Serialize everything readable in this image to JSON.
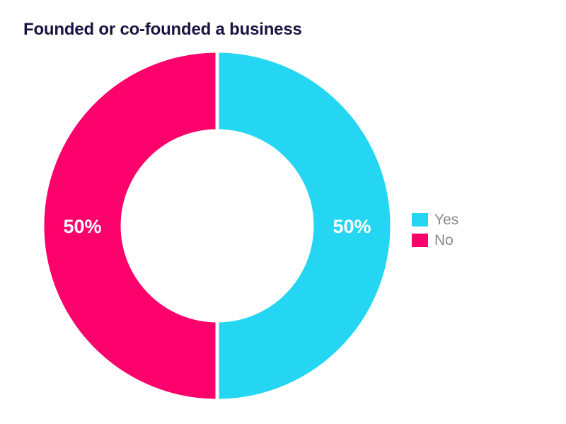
{
  "chart_data": {
    "type": "pie",
    "title": "Founded or co-founded a business",
    "donut": true,
    "categories": [
      "Yes",
      "No"
    ],
    "values": [
      50,
      50
    ],
    "value_labels": [
      "50%",
      "50%"
    ],
    "colors": [
      "#25d6f2",
      "#fc006b"
    ],
    "legend_position": "right"
  }
}
